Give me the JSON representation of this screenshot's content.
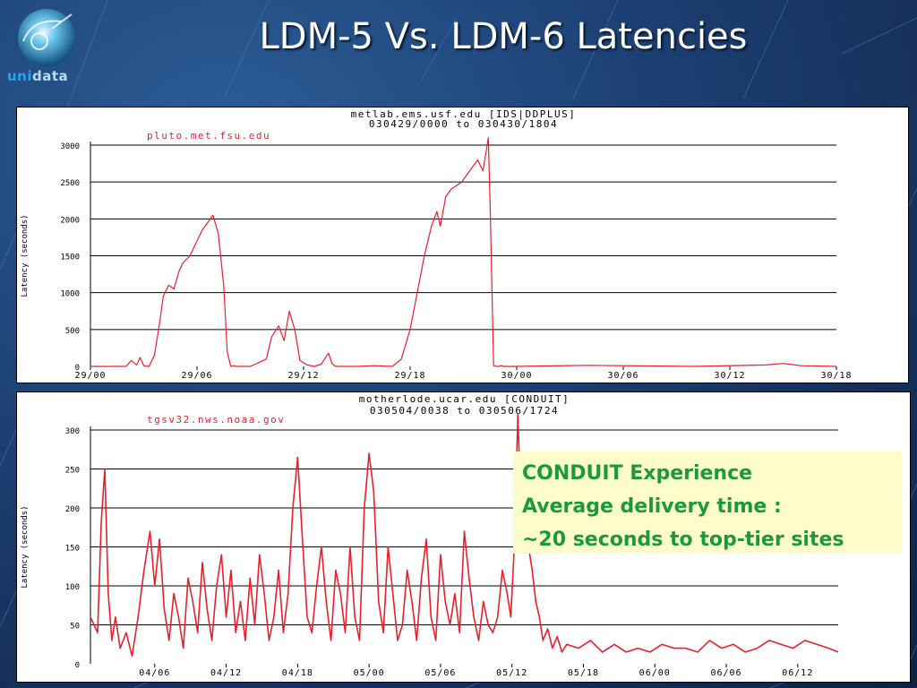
{
  "slide": {
    "title": "LDM-5 Vs. LDM-6 Latencies",
    "logo_text_1": "uni",
    "logo_text_2": "data"
  },
  "callout": {
    "line1": "CONDUIT Experience",
    "line2": "Average delivery time :",
    "line3": "~20 seconds to top-tier sites"
  },
  "colors": {
    "series": "#e8202a",
    "grid": "#000000",
    "callout_text": "#1a9a3c",
    "callout_bg": "#fffccc"
  },
  "chart_data": [
    {
      "type": "line",
      "title": "metlab.ems.usf.edu [IDS|DDPLUS]",
      "subtitle": "030429/0000 to 030430/1804",
      "ylabel": "Latency (seconds)",
      "xlabel": "",
      "ylim": [
        0,
        3000
      ],
      "yticks": [
        0,
        500,
        1000,
        1500,
        2000,
        2500,
        3000
      ],
      "xlim": [
        0,
        42
      ],
      "xtick_labels": [
        "29/00",
        "29/06",
        "29/12",
        "29/18",
        "30/00",
        "30/06",
        "30/12",
        "30/18"
      ],
      "grid": true,
      "series": [
        {
          "name": "pluto.met.fsu.edu",
          "x": [
            0,
            2,
            2.3,
            2.6,
            2.8,
            3.0,
            3.3,
            3.6,
            3.9,
            4.1,
            4.4,
            4.7,
            5.0,
            5.2,
            5.6,
            6.0,
            6.3,
            6.6,
            6.9,
            7.2,
            7.5,
            7.7,
            7.9,
            8.1,
            8.2,
            8.4,
            9.0,
            9.9,
            10.2,
            10.6,
            10.9,
            11.2,
            11.5,
            11.8,
            12.2,
            12.6,
            13.0,
            13.4,
            13.6,
            13.8,
            14.0,
            14.3,
            15.0,
            16.0,
            17.0,
            17.5,
            18.0,
            18.4,
            18.8,
            19.2,
            19.5,
            19.7,
            20.0,
            20.3,
            20.6,
            20.9,
            21.2,
            21.5,
            21.8,
            22.1,
            22.4,
            22.5,
            22.7,
            22.9,
            23.0,
            23.1,
            23.3,
            24.0,
            28.0,
            34.0,
            38.0,
            39.0,
            40.0,
            42.0
          ],
          "y": [
            0,
            0,
            80,
            20,
            120,
            10,
            0,
            150,
            600,
            950,
            1100,
            1050,
            1300,
            1400,
            1500,
            1700,
            1850,
            1950,
            2050,
            1800,
            1100,
            200,
            0,
            10,
            0,
            0,
            0,
            100,
            400,
            550,
            350,
            750,
            500,
            80,
            20,
            0,
            30,
            180,
            40,
            0,
            0,
            0,
            0,
            10,
            0,
            100,
            500,
            1000,
            1500,
            1900,
            2100,
            1900,
            2300,
            2400,
            2450,
            2500,
            2600,
            2700,
            2800,
            2650,
            3100,
            2200,
            10,
            0,
            0,
            10,
            0,
            0,
            15,
            0,
            20,
            40,
            10,
            0
          ]
        }
      ]
    },
    {
      "type": "line",
      "title": "motherlode.ucar.edu [CONDUIT]",
      "subtitle": "030504/0038 to 030506/1724",
      "ylabel": "Latency (seconds)",
      "xlabel": "",
      "ylim": [
        0,
        300
      ],
      "yticks": [
        0,
        50,
        100,
        150,
        200,
        250,
        300
      ],
      "xlim": [
        0,
        62.8
      ],
      "xtick_labels": [
        "04/06",
        "04/12",
        "04/18",
        "05/00",
        "05/06",
        "05/12",
        "05/18",
        "06/00",
        "06/06",
        "06/12"
      ],
      "xtick_positions": [
        5.4,
        11.4,
        17.4,
        23.4,
        29.4,
        35.4,
        41.4,
        47.4,
        53.4,
        59.4
      ],
      "grid": true,
      "series": [
        {
          "name": "tgsv32.nws.noaa.gov",
          "x": [
            0,
            0.6,
            0.9,
            1.2,
            1.5,
            1.8,
            2.1,
            2.5,
            3.0,
            3.5,
            4.0,
            4.5,
            5.0,
            5.4,
            5.8,
            6.2,
            6.6,
            7.0,
            7.4,
            7.8,
            8.2,
            8.6,
            9.0,
            9.4,
            9.8,
            10.2,
            10.6,
            11.0,
            11.4,
            11.8,
            12.2,
            12.6,
            13.0,
            13.4,
            13.8,
            14.2,
            14.6,
            15.0,
            15.4,
            15.8,
            16.2,
            16.6,
            17.0,
            17.4,
            17.8,
            18.2,
            18.6,
            19.0,
            19.4,
            19.8,
            20.2,
            20.6,
            21.0,
            21.4,
            21.8,
            22.2,
            22.6,
            23.0,
            23.4,
            23.8,
            24.2,
            24.6,
            25.0,
            25.4,
            25.8,
            26.2,
            26.6,
            27.0,
            27.4,
            27.8,
            28.2,
            28.6,
            29.0,
            29.4,
            29.8,
            30.2,
            30.6,
            31.0,
            31.4,
            31.8,
            32.2,
            32.6,
            33.0,
            33.4,
            33.8,
            34.2,
            34.6,
            35.0,
            35.3,
            35.6,
            35.9,
            36.2,
            36.5,
            36.8,
            37.1,
            37.4,
            37.7,
            38.0,
            38.4,
            38.8,
            39.2,
            39.6,
            40.0,
            41.0,
            42.0,
            43.0,
            44.0,
            45.0,
            46.0,
            47.0,
            48.0,
            49.0,
            50.0,
            51.0,
            52.0,
            53.0,
            54.0,
            55.0,
            56.0,
            57.0,
            58.0,
            59.0,
            60.0,
            61.0,
            62.0,
            62.8
          ],
          "y": [
            60,
            40,
            180,
            250,
            90,
            30,
            60,
            20,
            40,
            10,
            60,
            120,
            170,
            100,
            160,
            70,
            30,
            90,
            60,
            20,
            110,
            80,
            40,
            130,
            70,
            30,
            100,
            140,
            60,
            120,
            40,
            80,
            30,
            110,
            50,
            140,
            90,
            30,
            60,
            120,
            40,
            90,
            200,
            265,
            160,
            60,
            40,
            100,
            150,
            80,
            30,
            120,
            90,
            40,
            150,
            60,
            30,
            200,
            270,
            220,
            80,
            40,
            150,
            90,
            30,
            50,
            120,
            80,
            30,
            110,
            160,
            60,
            30,
            140,
            80,
            50,
            90,
            40,
            170,
            110,
            60,
            30,
            80,
            50,
            40,
            60,
            120,
            90,
            60,
            150,
            320,
            180,
            210,
            150,
            120,
            80,
            60,
            30,
            45,
            20,
            35,
            15,
            25,
            20,
            30,
            15,
            25,
            15,
            20,
            15,
            25,
            20,
            20,
            15,
            30,
            20,
            25,
            15,
            20,
            30,
            25,
            20,
            30,
            25,
            20,
            15
          ]
        }
      ]
    }
  ]
}
